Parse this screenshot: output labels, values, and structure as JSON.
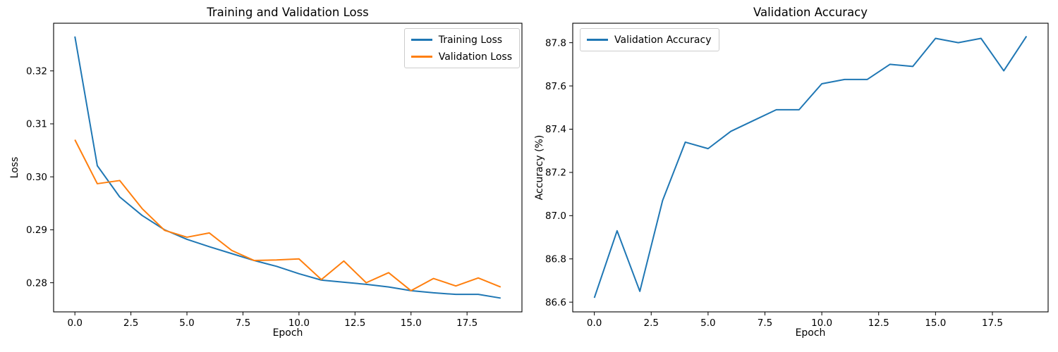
{
  "figure": {
    "background": "#ffffff",
    "axis_color": "#000000",
    "text_color": "#000000"
  },
  "chart_data": [
    {
      "type": "line",
      "title": "Training and Validation Loss",
      "xlabel": "Epoch",
      "ylabel": "Loss",
      "grid": false,
      "x": [
        0,
        1,
        2,
        3,
        4,
        5,
        6,
        7,
        8,
        9,
        10,
        11,
        12,
        13,
        14,
        15,
        16,
        17,
        18,
        19
      ],
      "series": [
        {
          "name": "Training Loss",
          "color": "#1f77b4",
          "values": [
            0.3265,
            0.3021,
            0.2962,
            0.2927,
            0.29,
            0.2882,
            0.2868,
            0.2855,
            0.2842,
            0.2831,
            0.2817,
            0.2805,
            0.2801,
            0.2797,
            0.2792,
            0.2785,
            0.2781,
            0.2778,
            0.2778,
            0.2771
          ]
        },
        {
          "name": "Validation Loss",
          "color": "#ff7f0e",
          "values": [
            0.307,
            0.2987,
            0.2993,
            0.294,
            0.2899,
            0.2886,
            0.2894,
            0.2861,
            0.2842,
            0.2843,
            0.2845,
            0.2806,
            0.2841,
            0.28,
            0.2819,
            0.2785,
            0.2808,
            0.2794,
            0.2809,
            0.2792
          ]
        }
      ],
      "xlim": [
        -0.95,
        19.95
      ],
      "ylim": [
        0.2745,
        0.329
      ],
      "xticks": {
        "values": [
          0,
          2.5,
          5,
          7.5,
          10,
          12.5,
          15,
          17.5
        ],
        "labels": [
          "0.0",
          "2.5",
          "5.0",
          "7.5",
          "10.0",
          "12.5",
          "15.0",
          "17.5"
        ]
      },
      "yticks": {
        "values": [
          0.28,
          0.29,
          0.3,
          0.31,
          0.32
        ],
        "labels": [
          "0.28",
          "0.29",
          "0.30",
          "0.31",
          "0.32"
        ]
      },
      "legend": {
        "position": "upper-right",
        "entries": [
          "Training Loss",
          "Validation Loss"
        ]
      }
    },
    {
      "type": "line",
      "title": "Validation Accuracy",
      "xlabel": "Epoch",
      "ylabel": "Accuracy (%)",
      "grid": false,
      "x": [
        0,
        1,
        2,
        3,
        4,
        5,
        6,
        7,
        8,
        9,
        10,
        11,
        12,
        13,
        14,
        15,
        16,
        17,
        18,
        19
      ],
      "series": [
        {
          "name": "Validation Accuracy",
          "color": "#1f77b4",
          "values": [
            86.62,
            86.93,
            86.65,
            87.07,
            87.34,
            87.31,
            87.39,
            87.44,
            87.49,
            87.49,
            87.61,
            87.63,
            87.63,
            87.7,
            87.69,
            87.82,
            87.8,
            87.82,
            87.67,
            87.83
          ]
        }
      ],
      "xlim": [
        -0.95,
        19.95
      ],
      "ylim": [
        86.555,
        87.89
      ],
      "xticks": {
        "values": [
          0,
          2.5,
          5,
          7.5,
          10,
          12.5,
          15,
          17.5
        ],
        "labels": [
          "0.0",
          "2.5",
          "5.0",
          "7.5",
          "10.0",
          "12.5",
          "15.0",
          "17.5"
        ]
      },
      "yticks": {
        "values": [
          86.6,
          86.8,
          87.0,
          87.2,
          87.4,
          87.6,
          87.8
        ],
        "labels": [
          "86.6",
          "86.8",
          "87.0",
          "87.2",
          "87.4",
          "87.6",
          "87.8"
        ]
      },
      "legend": {
        "position": "upper-left",
        "entries": [
          "Validation Accuracy"
        ]
      }
    }
  ]
}
